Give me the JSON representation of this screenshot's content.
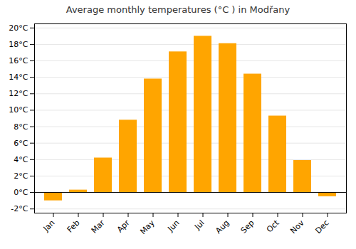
{
  "chart_data": {
    "type": "bar",
    "title": "Average monthly temperatures (°C ) in Modřany",
    "categories": [
      "Jan",
      "Feb",
      "Mar",
      "Apr",
      "May",
      "Jun",
      "Jul",
      "Aug",
      "Sep",
      "Oct",
      "Nov",
      "Dec"
    ],
    "values": [
      -1.0,
      0.3,
      4.2,
      8.8,
      13.8,
      17.1,
      19.0,
      18.1,
      14.4,
      9.3,
      3.9,
      -0.5
    ],
    "color": "#FFA500",
    "ylim": [
      -2.5,
      20.5
    ],
    "yticks": [
      {
        "value": -2,
        "label": "-2°C"
      },
      {
        "value": 0,
        "label": "0°C"
      },
      {
        "value": 2,
        "label": "2°C"
      },
      {
        "value": 4,
        "label": "4°C"
      },
      {
        "value": 6,
        "label": "6°C"
      },
      {
        "value": 8,
        "label": "8°C"
      },
      {
        "value": 10,
        "label": "10°C"
      },
      {
        "value": 12,
        "label": "12°C"
      },
      {
        "value": 14,
        "label": "14°C"
      },
      {
        "value": 16,
        "label": "16°C"
      },
      {
        "value": 18,
        "label": "18°C"
      },
      {
        "value": 20,
        "label": "20°C"
      }
    ],
    "grid": true
  }
}
